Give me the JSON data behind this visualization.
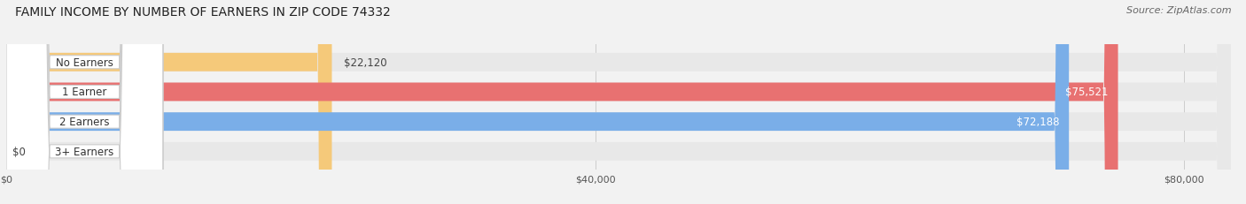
{
  "title": "FAMILY INCOME BY NUMBER OF EARNERS IN ZIP CODE 74332",
  "source": "Source: ZipAtlas.com",
  "categories": [
    "No Earners",
    "1 Earner",
    "2 Earners",
    "3+ Earners"
  ],
  "values": [
    22120,
    75521,
    72188,
    0
  ],
  "labels": [
    "$22,120",
    "$75,521",
    "$72,188",
    "$0"
  ],
  "colors": [
    "#f5c97a",
    "#e87171",
    "#7aaee8",
    "#c9a8d4"
  ],
  "xmax": 80000,
  "xticks": [
    0,
    40000,
    80000
  ],
  "xticklabels": [
    "$0",
    "$40,000",
    "$80,000"
  ],
  "label_inside_color": [
    "#333333",
    "#ffffff",
    "#ffffff",
    "#333333"
  ],
  "label_inside": [
    false,
    true,
    true,
    false
  ],
  "title_fontsize": 10,
  "source_fontsize": 8,
  "bar_label_fontsize": 8.5,
  "category_fontsize": 8.5,
  "tick_fontsize": 8,
  "background_color": "#f2f2f2",
  "bar_bg_color": "#e8e8e8",
  "grid_color": "#cccccc",
  "pill_bg_color": "#ffffff",
  "pill_border_color": "#cccccc"
}
